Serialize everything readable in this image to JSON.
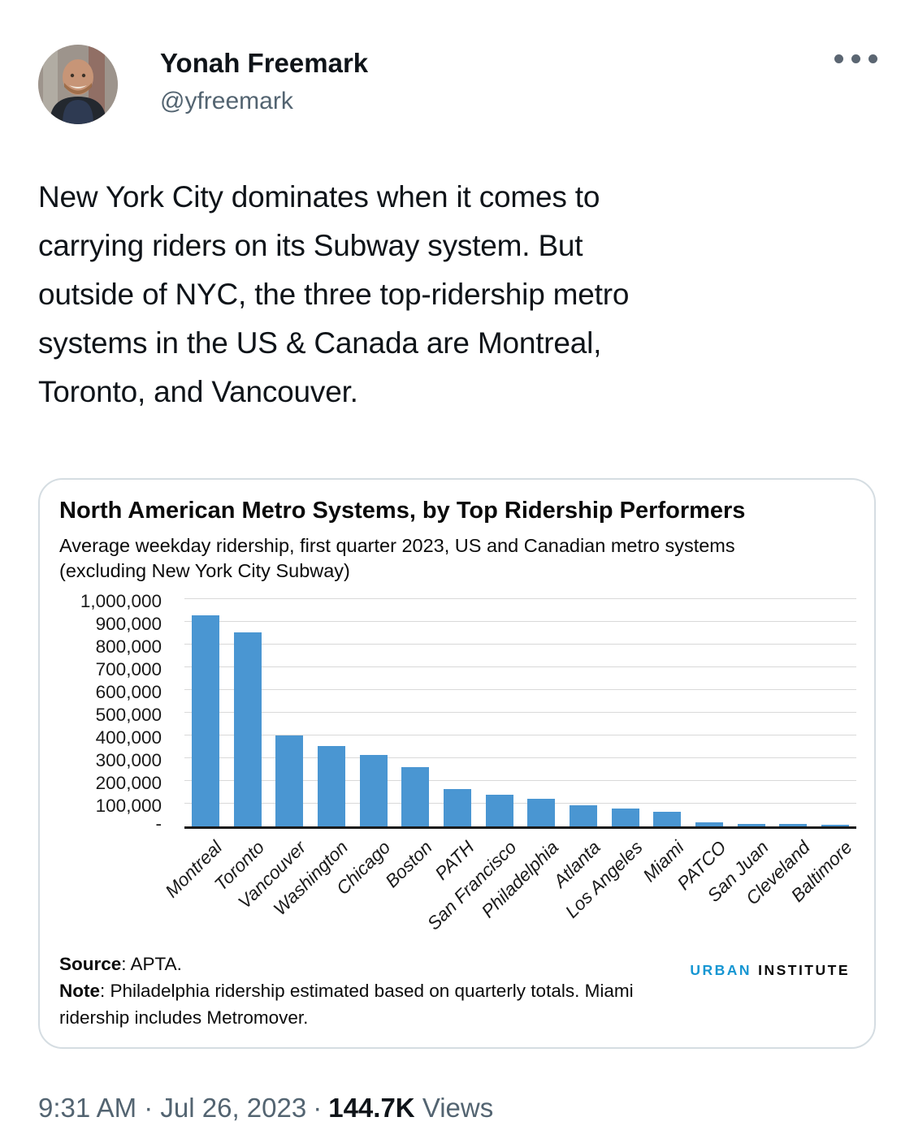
{
  "tweet": {
    "author": {
      "name": "Yonah Freemark",
      "handle": "@yfreemark"
    },
    "body": "New York City dominates when it comes to\ncarrying riders on its Subway system. But\noutside of NYC, the three top-ridership metro\nsystems in the US & Canada are Montreal,\nToronto, and Vancouver.",
    "footer": {
      "timestamp": "9:31 AM · Jul 26, 2023",
      "separator": "·",
      "views_count": "144.7K",
      "views_label": "Views"
    }
  },
  "chart_card": {
    "source_label": "Source",
    "source_text": ": APTA.",
    "note_label": "Note",
    "note_text": ": Philadelphia ridership estimated based on quarterly totals. Miami ridership includes Metromover.",
    "logo": {
      "urban": "URBAN",
      "institute": "INSTITUTE",
      "urban_color": "#1696d2"
    }
  },
  "chart_data": {
    "type": "bar",
    "title": "North American Metro Systems, by Top Ridership Performers",
    "subtitle": "Average weekday ridership, first quarter 2023, US and Canadian metro systems\n(excluding New York City Subway)",
    "categories": [
      "Montreal",
      "Toronto",
      "Vancouver",
      "Washington",
      "Chicago",
      "Boston",
      "PATH",
      "San Francisco",
      "Philadelphia",
      "Atlanta",
      "Los Angeles",
      "Miami",
      "PATCO",
      "San Juan",
      "Cleveland",
      "Baltimore"
    ],
    "values": [
      930000,
      855000,
      400000,
      355000,
      315000,
      260000,
      165000,
      138000,
      120000,
      92000,
      80000,
      65000,
      18000,
      12000,
      9000,
      6000
    ],
    "xlabel": "",
    "ylabel": "",
    "ylim": [
      0,
      1000000
    ],
    "ytick_step": 100000,
    "ytick_labels": [
      "1,000,000",
      "900,000",
      "800,000",
      "700,000",
      "600,000",
      "500,000",
      "400,000",
      "300,000",
      "200,000",
      "100,000",
      "-"
    ],
    "grid": true,
    "legend": "none",
    "bar_color": "#4a96d2",
    "gridline_color": "#d9d9d9"
  }
}
